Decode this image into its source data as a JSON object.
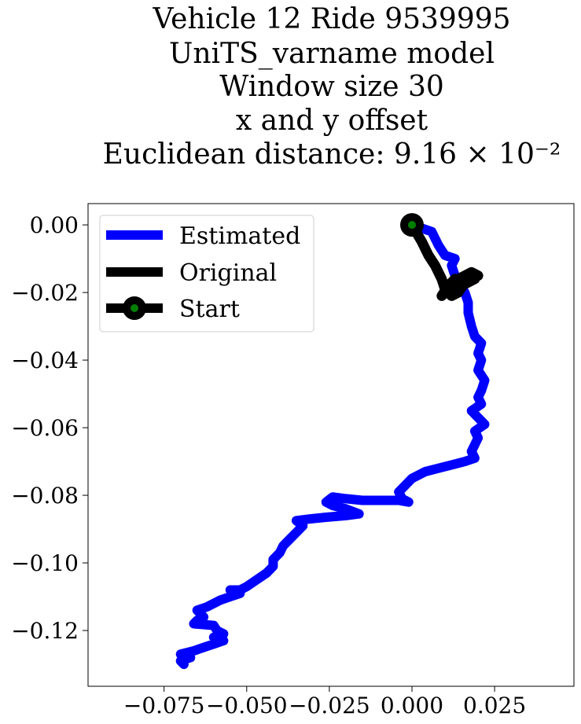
{
  "chart_data": {
    "type": "line",
    "title_lines": [
      "Vehicle 12 Ride 9539995",
      "UniTS_varname model",
      "Window size 30",
      "x and y offset",
      "Euclidean distance: 9.16 × 10⁻²"
    ],
    "xlabel": "",
    "ylabel": "",
    "xlim": [
      -0.098,
      0.049
    ],
    "ylim": [
      -0.1365,
      0.0063
    ],
    "xticks": [
      -0.075,
      -0.05,
      -0.025,
      0.0,
      0.025
    ],
    "xtick_labels": [
      "−0.075",
      "−0.050",
      "−0.025",
      "0.000",
      "0.025"
    ],
    "yticks": [
      0.0,
      -0.02,
      -0.04,
      -0.06,
      -0.08,
      -0.1,
      -0.12
    ],
    "ytick_labels": [
      "0.00",
      "−0.02",
      "−0.04",
      "−0.06",
      "−0.08",
      "−0.10",
      "−0.12"
    ],
    "grid": false,
    "legend_position": "top-left",
    "legend": [
      {
        "label": "Estimated",
        "style": "line",
        "color": "#0000ff"
      },
      {
        "label": "Original",
        "style": "line",
        "color": "#000000"
      },
      {
        "label": "Start",
        "style": "marker",
        "color": "#000000",
        "marker_color": "#008000"
      }
    ],
    "series": [
      {
        "name": "Estimated",
        "color": "#0000ff",
        "points": [
          [
            0.0,
            0.0
          ],
          [
            0.006,
            -0.002
          ],
          [
            0.008,
            -0.006
          ],
          [
            0.01,
            -0.009
          ],
          [
            0.013,
            -0.01
          ],
          [
            0.012,
            -0.012
          ],
          [
            0.013,
            -0.015
          ],
          [
            0.016,
            -0.02
          ],
          [
            0.017,
            -0.023
          ],
          [
            0.017,
            -0.026
          ],
          [
            0.018,
            -0.03
          ],
          [
            0.019,
            -0.033
          ],
          [
            0.021,
            -0.035
          ],
          [
            0.02,
            -0.038
          ],
          [
            0.021,
            -0.04
          ],
          [
            0.02,
            -0.043
          ],
          [
            0.022,
            -0.046
          ],
          [
            0.021,
            -0.049
          ],
          [
            0.02,
            -0.051
          ],
          [
            0.021,
            -0.053
          ],
          [
            0.018,
            -0.055
          ],
          [
            0.02,
            -0.057
          ],
          [
            0.022,
            -0.059
          ],
          [
            0.019,
            -0.061
          ],
          [
            0.02,
            -0.063
          ],
          [
            0.019,
            -0.065
          ],
          [
            0.018,
            -0.067
          ],
          [
            0.019,
            -0.069
          ],
          [
            0.016,
            -0.07
          ],
          [
            0.012,
            -0.071
          ],
          [
            0.008,
            -0.072
          ],
          [
            0.004,
            -0.073
          ],
          [
            0.0,
            -0.075
          ],
          [
            -0.002,
            -0.077
          ],
          [
            -0.004,
            -0.079
          ],
          [
            -0.003,
            -0.081
          ],
          [
            -0.001,
            -0.082
          ],
          [
            -0.004,
            -0.0815
          ],
          [
            -0.01,
            -0.0815
          ],
          [
            -0.015,
            -0.0815
          ],
          [
            -0.02,
            -0.081
          ],
          [
            -0.024,
            -0.0805
          ],
          [
            -0.026,
            -0.082
          ],
          [
            -0.024,
            -0.083
          ],
          [
            -0.02,
            -0.084
          ],
          [
            -0.016,
            -0.0855
          ],
          [
            -0.02,
            -0.086
          ],
          [
            -0.026,
            -0.0865
          ],
          [
            -0.031,
            -0.087
          ],
          [
            -0.035,
            -0.0875
          ],
          [
            -0.033,
            -0.089
          ],
          [
            -0.035,
            -0.091
          ],
          [
            -0.037,
            -0.093
          ],
          [
            -0.039,
            -0.095
          ],
          [
            -0.04,
            -0.097
          ],
          [
            -0.042,
            -0.099
          ],
          [
            -0.042,
            -0.101
          ],
          [
            -0.044,
            -0.103
          ],
          [
            -0.047,
            -0.105
          ],
          [
            -0.05,
            -0.107
          ],
          [
            -0.052,
            -0.108
          ],
          [
            -0.055,
            -0.108
          ],
          [
            -0.052,
            -0.109
          ],
          [
            -0.055,
            -0.11
          ],
          [
            -0.058,
            -0.111
          ],
          [
            -0.062,
            -0.113
          ],
          [
            -0.065,
            -0.114
          ],
          [
            -0.063,
            -0.116
          ],
          [
            -0.065,
            -0.117
          ],
          [
            -0.066,
            -0.118
          ],
          [
            -0.06,
            -0.1185
          ],
          [
            -0.059,
            -0.12
          ],
          [
            -0.057,
            -0.121
          ],
          [
            -0.06,
            -0.122
          ],
          [
            -0.057,
            -0.123
          ],
          [
            -0.06,
            -0.124
          ],
          [
            -0.063,
            -0.125
          ],
          [
            -0.066,
            -0.126
          ],
          [
            -0.07,
            -0.127
          ],
          [
            -0.067,
            -0.128
          ],
          [
            -0.07,
            -0.129
          ],
          [
            -0.069,
            -0.13
          ]
        ]
      },
      {
        "name": "Original",
        "color": "#000000",
        "points": [
          [
            0.0,
            0.0
          ],
          [
            0.003,
            -0.005
          ],
          [
            0.005,
            -0.009
          ],
          [
            0.007,
            -0.012
          ],
          [
            0.009,
            -0.016
          ],
          [
            0.01,
            -0.019
          ],
          [
            0.012,
            -0.021
          ],
          [
            0.014,
            -0.02
          ],
          [
            0.016,
            -0.017
          ],
          [
            0.018,
            -0.016
          ],
          [
            0.02,
            -0.015
          ],
          [
            0.018,
            -0.014
          ],
          [
            0.016,
            -0.015
          ],
          [
            0.014,
            -0.016
          ],
          [
            0.012,
            -0.018
          ],
          [
            0.01,
            -0.02
          ],
          [
            0.009,
            -0.021
          ],
          [
            0.011,
            -0.018
          ],
          [
            0.013,
            -0.016
          ],
          [
            0.015,
            -0.018
          ],
          [
            0.017,
            -0.017
          ],
          [
            0.019,
            -0.016
          ]
        ]
      }
    ],
    "start_point": {
      "label": "Start",
      "x": 0.0,
      "y": 0.0
    }
  }
}
